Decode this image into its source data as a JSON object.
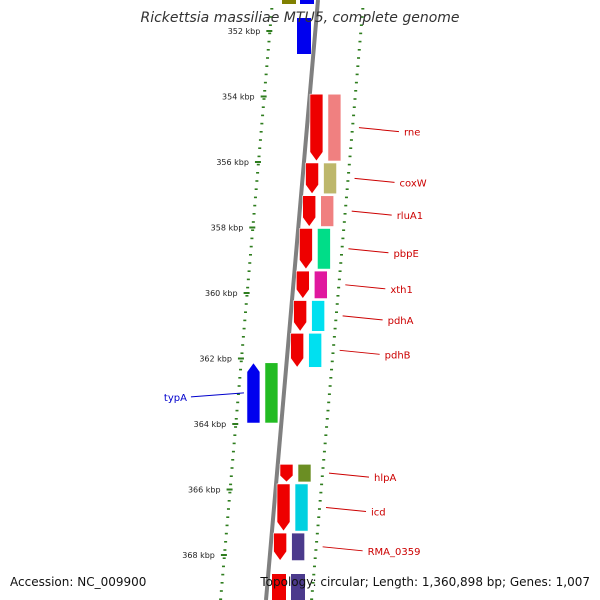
{
  "title": "Rickettsia massiliae MTU5, complete genome",
  "accession": "Accession: NC_009900",
  "topology": "Topology: circular; Length: 1,360,898 bp; Genes: 1,007",
  "colors": {
    "backbone": "#808080",
    "tick": "#2e7d1e",
    "forward_label": "#cc0000",
    "reverse_label": "#0000cc"
  },
  "ticks": [
    {
      "label": "352 kbp",
      "kbp": 352
    },
    {
      "label": "354 kbp",
      "kbp": 354
    },
    {
      "label": "356 kbp",
      "kbp": 356
    },
    {
      "label": "358 kbp",
      "kbp": 358
    },
    {
      "label": "360 kbp",
      "kbp": 360
    },
    {
      "label": "362 kbp",
      "kbp": 362
    },
    {
      "label": "364 kbp",
      "kbp": 364
    },
    {
      "label": "366 kbp",
      "kbp": 366
    },
    {
      "label": "368 kbp",
      "kbp": 368
    }
  ],
  "genes": [
    {
      "name": "rne",
      "strand": "forward",
      "color": "#ee0000",
      "cog_color": "#f08080",
      "start_kbp": 353.9,
      "end_kbp": 356.0
    },
    {
      "name": "coxW",
      "strand": "forward",
      "color": "#ee0000",
      "cog_color": "#bdb76b",
      "start_kbp": 356.0,
      "end_kbp": 357.0
    },
    {
      "name": "rluA1",
      "strand": "forward",
      "color": "#ee0000",
      "cog_color": "#f08080",
      "start_kbp": 357.0,
      "end_kbp": 358.0
    },
    {
      "name": "pbpE",
      "strand": "forward",
      "color": "#ee0000",
      "cog_color": "#00dd88",
      "start_kbp": 358.0,
      "end_kbp": 359.3
    },
    {
      "name": "xth1",
      "strand": "forward",
      "color": "#ee0000",
      "cog_color": "#e0189e",
      "start_kbp": 359.3,
      "end_kbp": 360.2
    },
    {
      "name": "pdhA",
      "strand": "forward",
      "color": "#ee0000",
      "cog_color": "#00e0f0",
      "start_kbp": 360.2,
      "end_kbp": 361.2
    },
    {
      "name": "pdhB",
      "strand": "forward",
      "color": "#ee0000",
      "cog_color": "#00e0f0",
      "start_kbp": 361.2,
      "end_kbp": 362.3
    },
    {
      "name": "typA",
      "strand": "reverse",
      "color": "#0000ee",
      "cog_color": "#22bb22",
      "start_kbp": 362.1,
      "end_kbp": 364.0
    },
    {
      "name": "hlpA",
      "strand": "forward",
      "color": "#ee0000",
      "cog_color": "#6b8e23",
      "start_kbp": 365.2,
      "end_kbp": 365.8
    },
    {
      "name": "icd",
      "strand": "forward",
      "color": "#ee0000",
      "cog_color": "#00d0e0",
      "start_kbp": 365.8,
      "end_kbp": 367.3
    },
    {
      "name": "RMA_0359",
      "strand": "forward",
      "color": "#ee0000",
      "cog_color": "#4b3a8c",
      "start_kbp": 367.3,
      "end_kbp": 368.2
    }
  ]
}
